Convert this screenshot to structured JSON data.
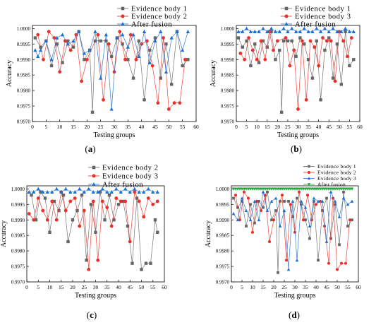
{
  "figure": {
    "panels": [
      {
        "caption_letter": "a"
      },
      {
        "caption_letter": "b"
      },
      {
        "caption_letter": "c"
      },
      {
        "caption_letter": "d"
      }
    ]
  },
  "chart_data": [
    {
      "type": "line",
      "panel": "a",
      "xlabel": "Testing groups",
      "ylabel": "Accuracy",
      "xlim": [
        0,
        60
      ],
      "ylim": [
        0.997,
        1.0001
      ],
      "xticks": [
        "0",
        "5",
        "10",
        "15",
        "20",
        "25",
        "30",
        "35",
        "40",
        "45",
        "50",
        "55",
        "60"
      ],
      "yticks": [
        "0.9970",
        "0.9975",
        "0.9980",
        "0.9985",
        "0.9990",
        "0.9995",
        "1.0000"
      ],
      "grid": false,
      "legend_position": "top-right",
      "series": [
        {
          "name": "Evidence body 1",
          "color": "#666666",
          "marker": "square",
          "x": [
            1,
            3,
            5,
            7,
            9,
            11,
            13,
            15,
            17,
            19,
            21,
            22,
            23,
            25,
            27,
            29,
            31,
            33,
            35,
            37,
            39,
            41,
            43,
            45,
            47,
            49,
            51,
            53,
            55,
            57
          ],
          "y": [
            0.9997,
            0.9994,
            0.9996,
            0.9988,
            0.9995,
            0.9989,
            0.9996,
            0.9994,
            0.9999,
            0.999,
            0.9993,
            0.9973,
            0.9996,
            0.9996,
            0.9996,
            0.9991,
            0.9997,
            0.9995,
            0.999,
            0.9984,
            0.9996,
            0.9977,
            0.9993,
            0.9997,
            0.9984,
            0.9995,
            0.9982,
            0.9999,
            0.9988,
            0.999
          ]
        },
        {
          "name": "Evidence body 2",
          "color": "#e8312a",
          "marker": "circle",
          "x": [
            2,
            4,
            6,
            8,
            10,
            12,
            14,
            16,
            18,
            20,
            24,
            26,
            28,
            30,
            32,
            34,
            36,
            38,
            40,
            42,
            44,
            46,
            48,
            50,
            52,
            54,
            56
          ],
          "y": [
            0.9998,
            0.999,
            0.9999,
            0.9997,
            0.9986,
            0.9996,
            0.9993,
            0.9998,
            0.9983,
            0.999,
            0.9998,
            0.9977,
            0.9995,
            0.9986,
            0.9999,
            0.999,
            0.9998,
            0.999,
            0.9995,
            0.9996,
            0.9988,
            0.9976,
            0.9997,
            0.9974,
            0.9976,
            0.9976,
            0.999
          ]
        },
        {
          "name": "After fusion",
          "color": "#1a6fd6",
          "marker": "triangle",
          "x": [
            1,
            2,
            3,
            5,
            7,
            9,
            11,
            13,
            15,
            17,
            19,
            21,
            23,
            25,
            27,
            29,
            31,
            33,
            35,
            37,
            39,
            41,
            43,
            45,
            47,
            49,
            51,
            53,
            55,
            57
          ],
          "y": [
            0.9993,
            0.9991,
            0.9993,
            0.9996,
            0.999,
            0.9997,
            0.9998,
            0.9995,
            0.9996,
            0.9999,
            0.9992,
            0.9993,
            0.9999,
            0.9984,
            0.9998,
            0.9974,
            0.9997,
            0.9998,
            0.9994,
            0.9998,
            0.9991,
            0.9999,
            0.9989,
            0.9996,
            0.9999,
            0.9986,
            0.9997,
            0.9999,
            0.9993,
            0.9999
          ]
        }
      ]
    },
    {
      "type": "line",
      "panel": "b",
      "xlabel": "Testing groups",
      "ylabel": "Accuracy",
      "xlim": [
        0,
        60
      ],
      "ylim": [
        0.997,
        1.0001
      ],
      "xticks": [
        "0",
        "5",
        "10",
        "15",
        "20",
        "25",
        "30",
        "35",
        "40",
        "45",
        "50",
        "55",
        "60"
      ],
      "yticks": [
        "0.9970",
        "0.9975",
        "0.9980",
        "0.9985",
        "0.9990",
        "0.9995",
        "1.0000"
      ],
      "grid": false,
      "legend_position": "top-right",
      "series": [
        {
          "name": "Evidence body 1",
          "color": "#666666",
          "marker": "square",
          "x": [
            1,
            3,
            5,
            7,
            9,
            11,
            13,
            15,
            17,
            19,
            21,
            22,
            23,
            25,
            27,
            29,
            31,
            33,
            35,
            37,
            39,
            41,
            43,
            45,
            47,
            49,
            51,
            53,
            55,
            57
          ],
          "y": [
            0.9997,
            0.9994,
            0.9996,
            0.9988,
            0.9995,
            0.9989,
            0.9996,
            0.9994,
            0.9999,
            0.999,
            0.9993,
            0.9973,
            0.9996,
            0.9996,
            0.9996,
            0.9991,
            0.9997,
            0.9995,
            0.999,
            0.9984,
            0.9996,
            0.9977,
            0.9993,
            0.9997,
            0.9984,
            0.9995,
            0.9982,
            0.9999,
            0.9988,
            0.999
          ]
        },
        {
          "name": "Evidence body 3",
          "color": "#e8312a",
          "marker": "circle",
          "x": [
            2,
            4,
            6,
            8,
            10,
            12,
            14,
            16,
            18,
            20,
            24,
            26,
            28,
            30,
            32,
            34,
            36,
            38,
            40,
            42,
            44,
            46,
            48,
            50,
            52,
            54,
            56
          ],
          "y": [
            0.9992,
            0.999,
            0.9997,
            0.9993,
            0.999,
            0.9996,
            0.999,
            0.9999,
            0.9993,
            0.9996,
            0.9997,
            0.9988,
            0.9993,
            0.9974,
            0.9996,
            0.9977,
            0.9996,
            0.9994,
            0.9988,
            0.9997,
            0.9996,
            0.9996,
            0.9983,
            0.9999,
            0.9996,
            0.9991,
            0.9997
          ]
        },
        {
          "name": "After fusion",
          "color": "#1a6fd6",
          "marker": "triangle",
          "x": [
            1,
            3,
            5,
            7,
            9,
            11,
            13,
            15,
            17,
            19,
            21,
            23,
            25,
            27,
            29,
            31,
            33,
            35,
            37,
            39,
            41,
            43,
            45,
            47,
            49,
            51,
            53,
            55,
            57
          ],
          "y": [
            0.9999,
            0.9999,
            1.0,
            0.9999,
            0.9999,
            0.9999,
            1.0,
            0.9999,
            1.0,
            0.9999,
            0.9999,
            1.0,
            0.9999,
            1.0,
            0.9999,
            0.9999,
            1.0,
            0.9999,
            0.9999,
            1.0,
            0.9999,
            1.0,
            0.9999,
            1.0,
            0.9999,
            0.9999,
            1.0,
            0.9999,
            0.9999
          ]
        }
      ]
    },
    {
      "type": "line",
      "panel": "c",
      "xlabel": "Testing groups",
      "ylabel": "Accuracy",
      "xlim": [
        0,
        60
      ],
      "ylim": [
        0.997,
        1.0001
      ],
      "xticks": [
        "0",
        "5",
        "10",
        "15",
        "20",
        "25",
        "30",
        "35",
        "40",
        "45",
        "50",
        "55",
        "60"
      ],
      "yticks": [
        "0.9970",
        "0.9975",
        "0.9980",
        "0.9985",
        "0.9990",
        "0.9995",
        "1.0000"
      ],
      "grid": false,
      "legend_position": "top-right",
      "series": [
        {
          "name": "Evidence body 2",
          "color": "#666666",
          "marker": "square",
          "x": [
            2,
            4,
            6,
            8,
            10,
            12,
            14,
            16,
            18,
            20,
            22,
            24,
            26,
            28,
            30,
            32,
            34,
            36,
            38,
            40,
            42,
            44,
            46,
            48,
            50,
            52,
            54,
            56,
            57
          ],
          "y": [
            0.9998,
            0.999,
            0.9999,
            0.9997,
            0.9986,
            0.9996,
            0.9993,
            0.9998,
            0.9983,
            0.999,
            0.9993,
            0.9998,
            0.9977,
            0.9995,
            0.9986,
            0.9999,
            0.999,
            0.9998,
            0.999,
            0.9995,
            0.9996,
            0.9988,
            0.9976,
            0.9997,
            0.9974,
            0.9976,
            0.9976,
            0.999,
            0.9986
          ]
        },
        {
          "name": "Evidence body 3",
          "color": "#e8312a",
          "marker": "circle",
          "x": [
            1,
            3,
            5,
            7,
            9,
            11,
            13,
            15,
            17,
            19,
            21,
            23,
            25,
            27,
            29,
            31,
            33,
            35,
            37,
            39,
            41,
            43,
            45,
            47,
            49,
            51,
            53,
            55,
            57
          ],
          "y": [
            0.9992,
            0.999,
            0.9997,
            0.9993,
            0.999,
            0.9996,
            0.999,
            0.9999,
            0.9993,
            0.9996,
            0.9997,
            0.9988,
            0.9993,
            0.9974,
            0.9996,
            0.9977,
            0.9996,
            0.9994,
            0.9988,
            0.9997,
            0.9996,
            0.9996,
            0.9983,
            0.9999,
            0.9996,
            0.9991,
            0.9997,
            0.9995,
            0.9996
          ]
        },
        {
          "name": "After fusion",
          "color": "#1a6fd6",
          "marker": "triangle",
          "x": [
            1,
            3,
            5,
            7,
            9,
            11,
            13,
            15,
            17,
            19,
            21,
            23,
            25,
            27,
            29,
            31,
            33,
            35,
            37,
            39,
            41,
            43,
            45,
            47,
            49,
            51,
            53,
            55,
            57
          ],
          "y": [
            0.9999,
            0.9999,
            1.0,
            0.9999,
            0.9999,
            0.9999,
            1.0,
            0.9999,
            1.0,
            0.9999,
            0.9999,
            1.0,
            0.9999,
            1.0,
            0.9999,
            0.9999,
            1.0,
            0.9999,
            0.9999,
            1.0,
            0.9999,
            1.0,
            0.9999,
            1.0,
            0.9999,
            0.9999,
            1.0,
            0.9999,
            0.9999
          ]
        }
      ]
    },
    {
      "type": "line",
      "panel": "d",
      "xlabel": "Testing groups",
      "ylabel": "Accuracy",
      "xlim": [
        0,
        60
      ],
      "ylim": [
        0.997,
        1.0001
      ],
      "xticks": [
        "0",
        "5",
        "10",
        "15",
        "20",
        "25",
        "30",
        "35",
        "40",
        "45",
        "50",
        "55",
        "60"
      ],
      "yticks": [
        "0.9970",
        "0.9975",
        "0.9980",
        "0.9985",
        "0.9990",
        "0.9995",
        "1.0000"
      ],
      "grid": false,
      "legend_position": "top-right",
      "series": [
        {
          "name": "Evidence body 1",
          "color": "#666666",
          "marker": "square",
          "x": [
            1,
            3,
            5,
            7,
            9,
            11,
            13,
            15,
            17,
            19,
            21,
            22,
            23,
            25,
            27,
            29,
            31,
            33,
            35,
            37,
            39,
            41,
            43,
            45,
            47,
            49,
            51,
            53,
            55,
            57
          ],
          "y": [
            0.9997,
            0.9994,
            0.9996,
            0.9988,
            0.9995,
            0.9989,
            0.9996,
            0.9994,
            0.9999,
            0.999,
            0.9993,
            0.9973,
            0.9996,
            0.9996,
            0.9996,
            0.9991,
            0.9997,
            0.9995,
            0.999,
            0.9984,
            0.9996,
            0.9977,
            0.9993,
            0.9997,
            0.9984,
            0.9995,
            0.9982,
            0.9999,
            0.9988,
            0.999
          ]
        },
        {
          "name": "Evidence body 2",
          "color": "#e8312a",
          "marker": "circle",
          "x": [
            2,
            4,
            6,
            8,
            10,
            12,
            14,
            16,
            18,
            20,
            24,
            26,
            28,
            30,
            32,
            34,
            36,
            38,
            40,
            42,
            44,
            46,
            48,
            50,
            52,
            54,
            56
          ],
          "y": [
            0.9998,
            0.999,
            0.9999,
            0.9997,
            0.9986,
            0.9996,
            0.9993,
            0.9998,
            0.9983,
            0.999,
            0.9998,
            0.9977,
            0.9995,
            0.9986,
            0.9999,
            0.999,
            0.9998,
            0.999,
            0.9995,
            0.9996,
            0.9988,
            0.9976,
            0.9997,
            0.9974,
            0.9976,
            0.9976,
            0.999
          ]
        },
        {
          "name": "Evidence body 3",
          "color": "#1a6fd6",
          "marker": "triangle",
          "x": [
            1,
            3,
            5,
            7,
            9,
            11,
            13,
            15,
            17,
            19,
            21,
            23,
            25,
            27,
            29,
            31,
            33,
            35,
            37,
            39,
            41,
            43,
            45,
            47,
            49,
            51,
            53,
            55,
            57
          ],
          "y": [
            0.9992,
            0.999,
            0.9997,
            0.9993,
            0.999,
            0.9996,
            0.999,
            0.9999,
            0.9993,
            0.9996,
            0.9997,
            0.9988,
            0.9993,
            0.9974,
            0.9996,
            0.9977,
            0.9996,
            0.9994,
            0.9988,
            0.9997,
            0.9996,
            0.9996,
            0.9983,
            0.9999,
            0.9996,
            0.9991,
            0.9997,
            0.9995,
            0.9996
          ]
        },
        {
          "name": "After fusion",
          "color": "#22a83a",
          "marker": "triangle-down",
          "x": [
            1,
            2,
            3,
            4,
            5,
            6,
            7,
            8,
            9,
            10,
            11,
            12,
            13,
            14,
            15,
            16,
            17,
            18,
            19,
            20,
            21,
            22,
            23,
            24,
            25,
            26,
            27,
            28,
            29,
            30,
            31,
            32,
            33,
            34,
            35,
            36,
            37,
            38,
            39,
            40,
            41,
            42,
            43,
            44,
            45,
            46,
            47,
            48,
            49,
            50,
            51,
            52,
            53,
            54,
            55,
            56,
            57
          ],
          "y": [
            1.0,
            1.0,
            1.0,
            1.0,
            1.0,
            1.0,
            1.0,
            1.0,
            1.0,
            1.0,
            1.0,
            1.0,
            1.0,
            1.0,
            1.0,
            1.0,
            1.0,
            1.0,
            1.0,
            1.0,
            1.0,
            1.0,
            1.0,
            1.0,
            1.0,
            1.0,
            1.0,
            1.0,
            1.0,
            1.0,
            1.0,
            1.0,
            1.0,
            1.0,
            1.0,
            1.0,
            1.0,
            1.0,
            1.0,
            1.0,
            1.0,
            1.0,
            1.0,
            1.0,
            1.0,
            1.0,
            1.0,
            1.0,
            1.0,
            1.0,
            1.0,
            1.0,
            1.0,
            1.0,
            1.0,
            1.0,
            1.0
          ]
        }
      ]
    }
  ]
}
